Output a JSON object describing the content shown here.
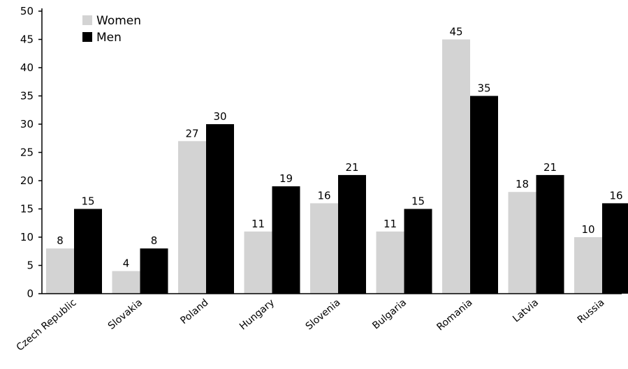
{
  "chart_data": {
    "type": "bar",
    "title": "",
    "xlabel": "",
    "ylabel": "",
    "ylim": [
      0,
      50
    ],
    "yticks": [
      0,
      5,
      10,
      15,
      20,
      25,
      30,
      35,
      40,
      45,
      50
    ],
    "categories": [
      "Czech Republic",
      "Slovakia",
      "Poland",
      "Hungary",
      "Slovenia",
      "Bulgaria",
      "Romania",
      "Latvia",
      "Russia"
    ],
    "series": [
      {
        "name": "Women",
        "color": "#d3d3d3",
        "values": [
          8,
          4,
          27,
          11,
          16,
          11,
          45,
          18,
          10
        ]
      },
      {
        "name": "Men",
        "color": "#000000",
        "values": [
          15,
          8,
          30,
          19,
          21,
          15,
          35,
          21,
          16
        ]
      }
    ],
    "legend_position": "top-left",
    "grid": false
  }
}
